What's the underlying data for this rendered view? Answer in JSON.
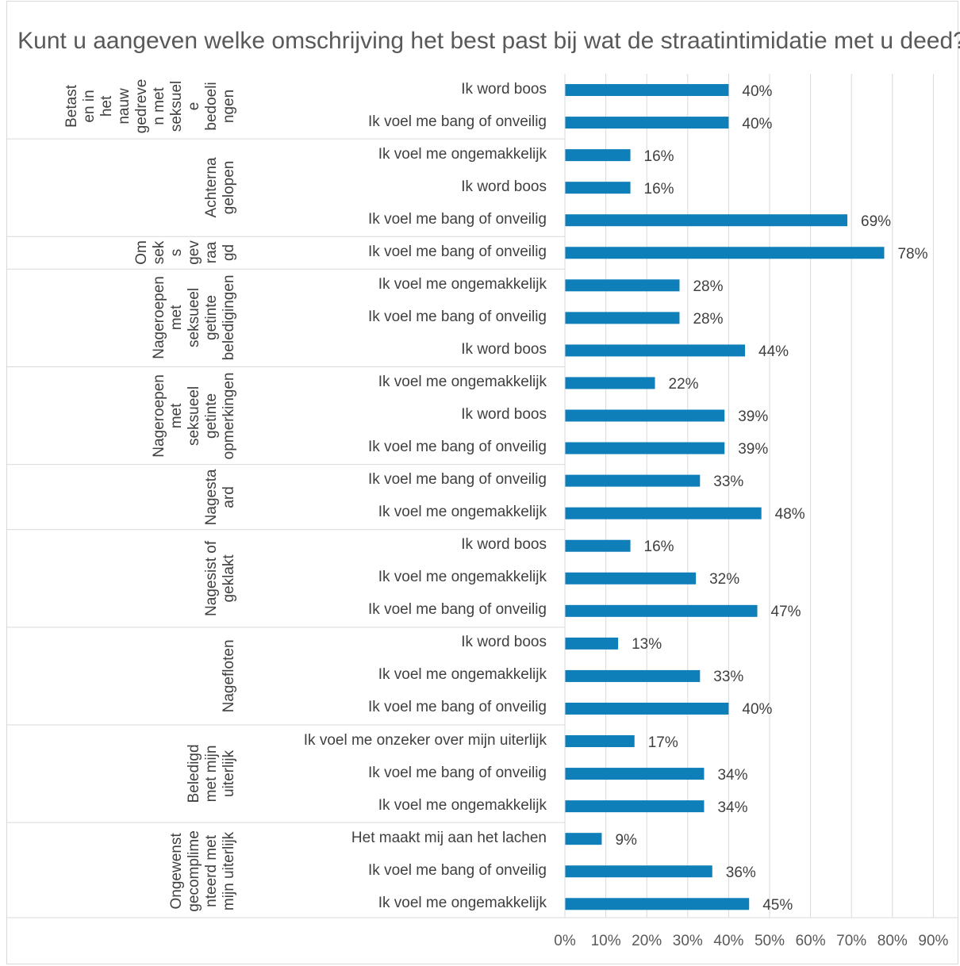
{
  "chart_data": {
    "type": "bar",
    "orientation": "horizontal",
    "title": "Kunt u aangeven welke omschrijving het best past bij wat de straatintimidatie met u deed?",
    "xlim": [
      0,
      90
    ],
    "x_ticks": [
      "0%",
      "10%",
      "20%",
      "30%",
      "40%",
      "50%",
      "60%",
      "70%",
      "80%",
      "90%"
    ],
    "grid": "vertical",
    "color": "#0f7fb9",
    "groups": [
      {
        "name": "Betasten in het nauw gedreven met seksuele bedoelingen",
        "label_lines": [
          "Betast",
          "en in",
          "het",
          "nauw",
          "gedreve",
          "n met",
          "seksuel",
          "e",
          "bedoeli",
          "ngen"
        ],
        "bars": [
          {
            "label": "Ik word boos",
            "value": 40
          },
          {
            "label": "Ik voel me bang of onveilig",
            "value": 40
          }
        ]
      },
      {
        "name": "Achternagelopen",
        "label_lines": [
          "Achterna",
          "gelopen"
        ],
        "bars": [
          {
            "label": "Ik voel me ongemakkelijk",
            "value": 16
          },
          {
            "label": "Ik word boos",
            "value": 16
          },
          {
            "label": "Ik voel me bang of onveilig",
            "value": 69
          }
        ]
      },
      {
        "name": "Om seks gevraagd",
        "label_lines": [
          "Om",
          "sek",
          "s",
          "gev",
          "raa",
          "gd"
        ],
        "bars": [
          {
            "label": "Ik voel me bang of onveilig",
            "value": 78
          }
        ]
      },
      {
        "name": "Nageroepen met seksueel getinte beledigingen",
        "label_lines": [
          "Nageroepen",
          "met",
          "seksueel",
          "getinte",
          "beledigingen"
        ],
        "bars": [
          {
            "label": "Ik voel me ongemakkelijk",
            "value": 28
          },
          {
            "label": "Ik voel me bang of onveilig",
            "value": 28
          },
          {
            "label": "Ik word boos",
            "value": 44
          }
        ]
      },
      {
        "name": "Nageroepen met seksueel getinte opmerkingen",
        "label_lines": [
          "Nageroepen",
          "met",
          "seksueel",
          "getinte",
          "opmerkingen"
        ],
        "bars": [
          {
            "label": "Ik voel me ongemakkelijk",
            "value": 22
          },
          {
            "label": "Ik word boos",
            "value": 39
          },
          {
            "label": "Ik voel me bang of onveilig",
            "value": 39
          }
        ]
      },
      {
        "name": "Nagestaard",
        "label_lines": [
          "Nagesta",
          "ard"
        ],
        "bars": [
          {
            "label": "Ik voel me bang of onveilig",
            "value": 33
          },
          {
            "label": "Ik voel me ongemakkelijk",
            "value": 48
          }
        ]
      },
      {
        "name": "Nagesist of geklakt",
        "label_lines": [
          "Nagesist of",
          "geklakt"
        ],
        "bars": [
          {
            "label": "Ik word boos",
            "value": 16
          },
          {
            "label": "Ik voel me ongemakkelijk",
            "value": 32
          },
          {
            "label": "Ik voel me bang of onveilig",
            "value": 47
          }
        ]
      },
      {
        "name": "Nagefloten",
        "label_lines": [
          "Nagefloten"
        ],
        "bars": [
          {
            "label": "Ik word boos",
            "value": 13
          },
          {
            "label": "Ik voel me ongemakkelijk",
            "value": 33
          },
          {
            "label": "Ik voel me bang of onveilig",
            "value": 40
          }
        ]
      },
      {
        "name": "Beledigd met mijn uiterlijk",
        "label_lines": [
          "Beledigd",
          "met mijn",
          "uiterlijk"
        ],
        "bars": [
          {
            "label": "Ik voel me onzeker over mijn uiterlijk",
            "value": 17
          },
          {
            "label": "Ik voel me bang of onveilig",
            "value": 34
          },
          {
            "label": "Ik voel me ongemakkelijk",
            "value": 34
          }
        ]
      },
      {
        "name": "Ongewenst gecomplimenteerd met mijn uiterlijk",
        "label_lines": [
          "Ongewenst",
          "gecomplime",
          "nteerd met",
          "mijn uiterlijk"
        ],
        "bars": [
          {
            "label": "Het maakt mij aan het lachen",
            "value": 9
          },
          {
            "label": "Ik voel me bang of onveilig",
            "value": 36
          },
          {
            "label": "Ik voel me ongemakkelijk",
            "value": 45
          }
        ]
      }
    ]
  }
}
